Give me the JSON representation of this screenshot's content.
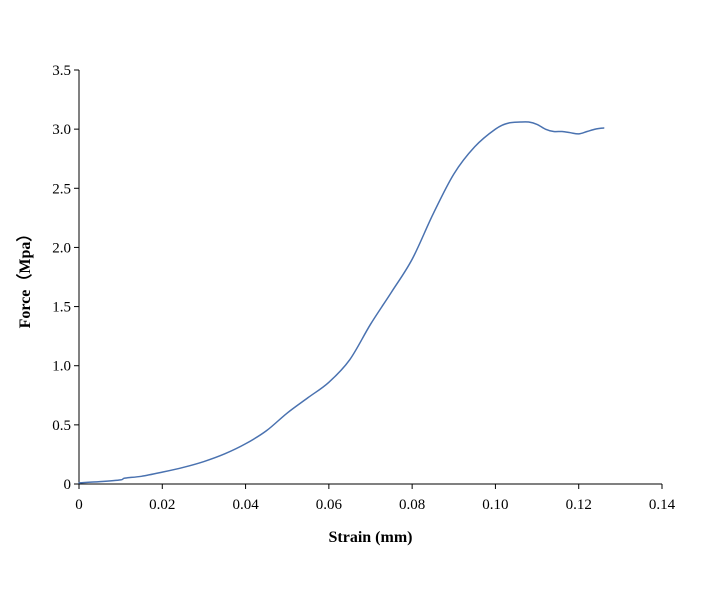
{
  "chart_data": {
    "type": "line",
    "title": "",
    "xlabel": "Strain (mm)",
    "ylabel": "Force（Mpa）",
    "xlim": [
      0,
      0.14
    ],
    "ylim": [
      0,
      3.5
    ],
    "x_ticks": [
      "0",
      "0.02",
      "0.04",
      "0.06",
      "0.08",
      "0.10",
      "0.12",
      "0.14"
    ],
    "y_ticks": [
      "0",
      "0.5",
      "1.0",
      "1.5",
      "2.0",
      "2.5",
      "3.0",
      "3.5"
    ],
    "grid": false,
    "legend": "none",
    "series": [
      {
        "color": "#4a72b0",
        "x": [
          0,
          0.005,
          0.01,
          0.011,
          0.015,
          0.02,
          0.025,
          0.03,
          0.035,
          0.04,
          0.045,
          0.05,
          0.055,
          0.06,
          0.065,
          0.07,
          0.075,
          0.08,
          0.085,
          0.09,
          0.095,
          0.1,
          0.103,
          0.106,
          0.108,
          0.11,
          0.112,
          0.114,
          0.116,
          0.118,
          0.12,
          0.122,
          0.124,
          0.126
        ],
        "y": [
          0.01,
          0.02,
          0.035,
          0.05,
          0.065,
          0.1,
          0.14,
          0.19,
          0.255,
          0.34,
          0.45,
          0.6,
          0.73,
          0.86,
          1.05,
          1.35,
          1.62,
          1.9,
          2.28,
          2.62,
          2.85,
          3.0,
          3.05,
          3.06,
          3.06,
          3.04,
          3.0,
          2.98,
          2.98,
          2.97,
          2.96,
          2.98,
          3.0,
          3.01
        ]
      }
    ]
  }
}
